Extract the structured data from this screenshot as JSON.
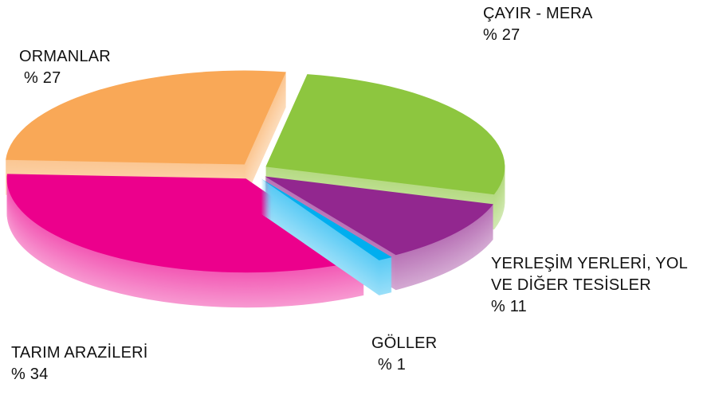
{
  "chart_data": {
    "type": "pie",
    "categories": [
      "ÇAYIR - MERA",
      "YERLEŞİM YERLERİ, YOL VE DİĞER TESİSLER",
      "GÖLLER",
      "TARIM ARAZİLERİ",
      "ORMANLAR"
    ],
    "values": [
      27,
      11,
      1,
      34,
      27
    ],
    "value_labels": [
      "% 27",
      "% 11",
      "% 1",
      "% 34",
      "% 27"
    ],
    "colors": [
      "#8dc63f",
      "#92278f",
      "#00aeef",
      "#ec008c",
      "#f9a857"
    ]
  }
}
